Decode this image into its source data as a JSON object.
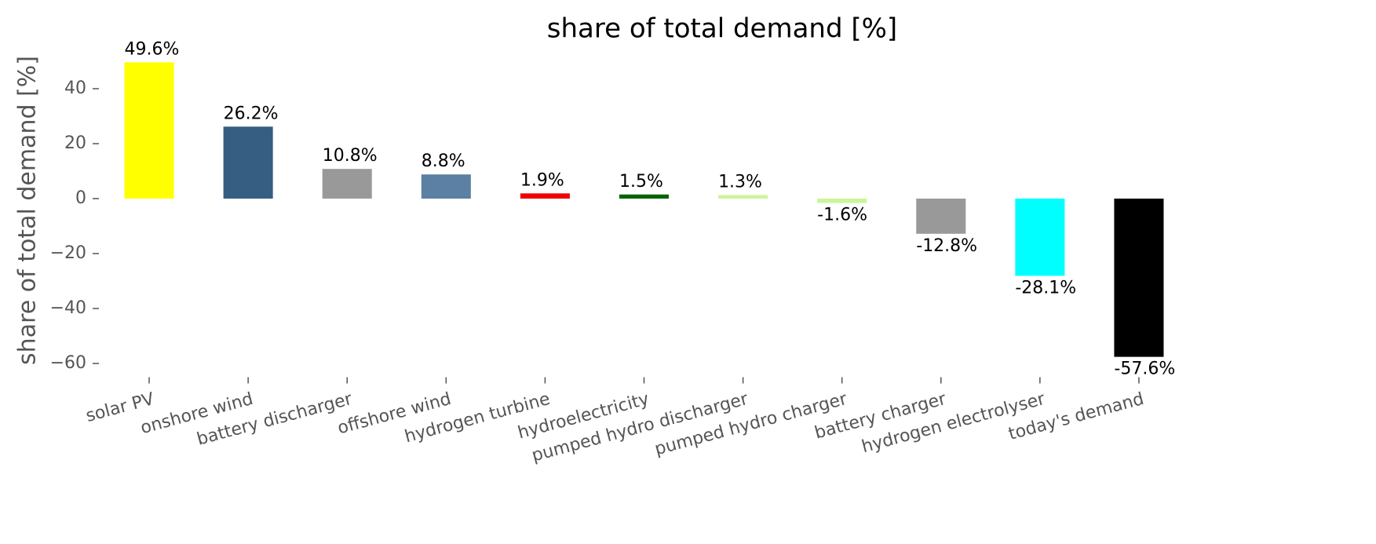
{
  "chart_data": {
    "type": "bar",
    "title": "share of total demand [%]",
    "ylabel": "share of total demand [%]",
    "categories": [
      "solar PV",
      "onshore wind",
      "battery discharger",
      "offshore wind",
      "hydrogen turbine",
      "hydroelectricity",
      "pumped hydro discharger",
      "pumped hydro charger",
      "battery charger",
      "hydrogen electrolyser",
      "today's demand"
    ],
    "values": [
      49.6,
      26.2,
      10.8,
      8.8,
      1.9,
      1.5,
      1.3,
      -1.6,
      -12.8,
      -28.1,
      -57.6
    ],
    "value_labels": [
      "49.6%",
      "26.2%",
      "10.8%",
      "8.8%",
      "1.9%",
      "1.5%",
      "1.3%",
      "-1.6%",
      "-12.8%",
      "-28.1%",
      "-57.6%"
    ],
    "colors": [
      "#ffff00",
      "#365e82",
      "#999999",
      "#5b80a3",
      "#ee0000",
      "#006400",
      "#ccf59a",
      "#ccf59a",
      "#999999",
      "#00ffff",
      "#000000"
    ],
    "ylim": [
      -65,
      52
    ],
    "yticks": [
      {
        "value": -60,
        "label": "−60"
      },
      {
        "value": -40,
        "label": "−40"
      },
      {
        "value": -20,
        "label": "−20"
      },
      0,
      20,
      40
    ],
    "grid": false
  }
}
